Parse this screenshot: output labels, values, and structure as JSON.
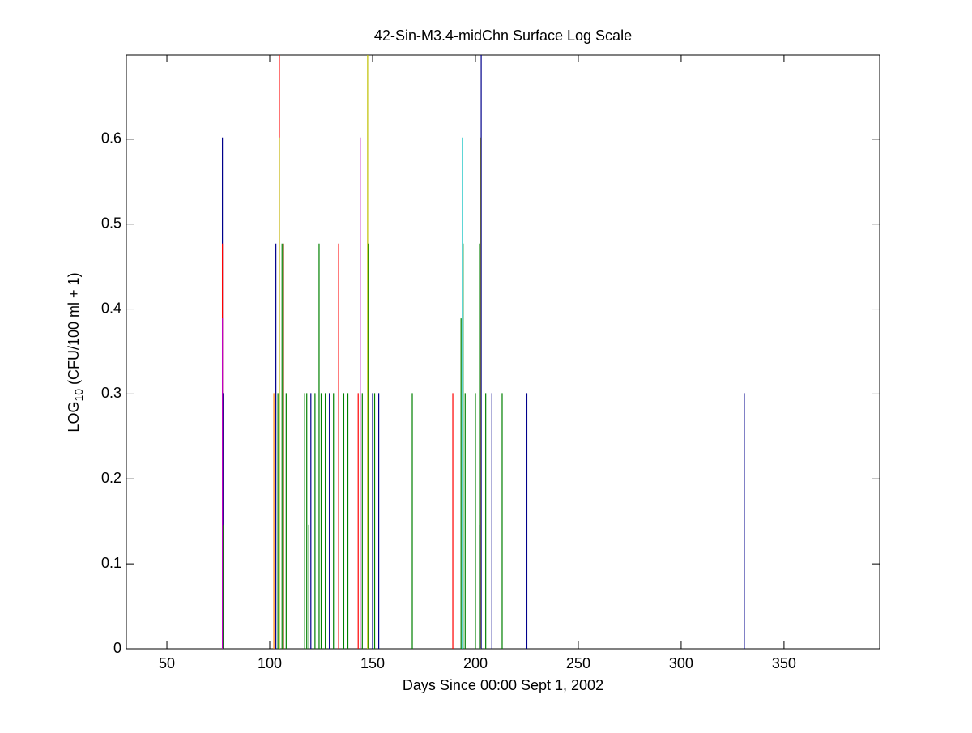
{
  "chart_data": {
    "type": "stem",
    "title": "42-Sin-M3.4-midChn Surface Log Scale",
    "xlabel": "Days Since 00:00 Sept 1, 2002",
    "ylabel": {
      "base": "LOG",
      "sub": "10",
      "rest": " (CFU/100 ml + 1)"
    },
    "x": [
      77,
      77,
      77,
      77.5,
      77.5,
      102,
      103,
      104,
      104.7,
      104.7,
      106,
      106.7,
      108,
      117,
      118,
      119,
      120,
      122,
      124,
      125,
      127,
      129,
      131,
      133.5,
      136,
      138,
      143,
      144,
      145,
      147.6,
      148,
      150,
      151,
      153,
      169.3,
      189,
      193,
      193.7,
      194,
      195,
      200,
      202,
      202,
      202.5,
      202.8,
      205,
      208,
      213,
      225,
      330.7
    ],
    "values": [
      0.602,
      0.477,
      0.389,
      0.301,
      0.146,
      0.301,
      0.477,
      0.301,
      0.699,
      0.602,
      0.477,
      0.477,
      0.301,
      0.301,
      0.301,
      0.146,
      0.301,
      0.301,
      0.477,
      0.301,
      0.301,
      0.301,
      0.301,
      0.477,
      0.301,
      0.301,
      0.301,
      0.602,
      0.301,
      0.699,
      0.477,
      0.301,
      0.301,
      0.301,
      0.301,
      0.301,
      0.389,
      0.602,
      0.477,
      0.301,
      0.301,
      0.146,
      0.477,
      0.602,
      0.699,
      0.301,
      0.301,
      0.301,
      0.301,
      0.301
    ],
    "colors": [
      "#00008b",
      "#ff0000",
      "#bf00bf",
      "#00008b",
      "#008000",
      "#ff8000",
      "#00008b",
      "#008000",
      "#ff0000",
      "#bfbf00",
      "#008000",
      "#804000",
      "#008000",
      "#008000",
      "#008000",
      "#008000",
      "#00008b",
      "#008000",
      "#008000",
      "#008000",
      "#008000",
      "#00008b",
      "#008000",
      "#ff0000",
      "#008000",
      "#008000",
      "#ff0000",
      "#bf00bf",
      "#008000",
      "#bfbf00",
      "#008000",
      "#00008b",
      "#008000",
      "#00008b",
      "#008000",
      "#ff0000",
      "#008000",
      "#00bfbf",
      "#008000",
      "#008000",
      "#008000",
      "#00008b",
      "#008000",
      "#bfbf00",
      "#00008b",
      "#008000",
      "#00008b",
      "#008000",
      "#00008b",
      "#00008b"
    ],
    "xlim": [
      30.3,
      396.5
    ],
    "xticks": [
      50,
      100,
      150,
      200,
      250,
      300,
      350
    ],
    "ylim": [
      0,
      0.699
    ],
    "yticks": [
      0,
      0.1,
      0.2,
      0.3,
      0.4,
      0.5,
      0.6
    ]
  }
}
